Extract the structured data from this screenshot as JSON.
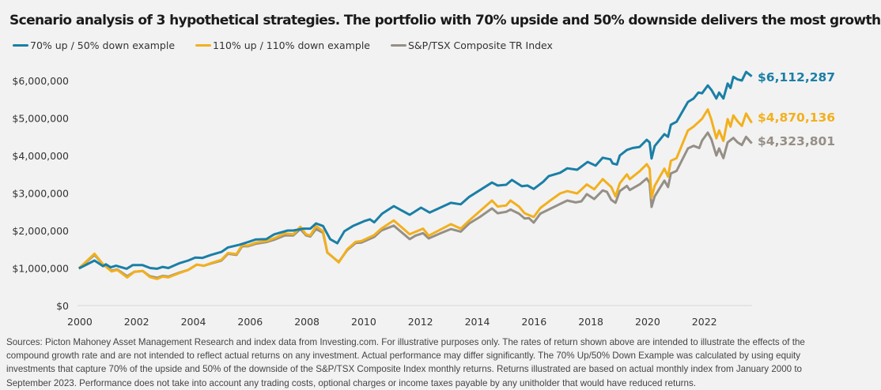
{
  "chart_data": {
    "type": "line",
    "title": "Scenario analysis of 3 hypothetical strategies. The portfolio with 70% upside and 50% downside delivers the most growth",
    "xlabel": "",
    "ylabel": "",
    "xlim": [
      2000,
      2023.75
    ],
    "ylim": [
      0,
      6000000
    ],
    "x_ticks": [
      "2000",
      "2002",
      "2004",
      "2006",
      "2008",
      "2010",
      "2012",
      "2014",
      "2016",
      "2018",
      "2020",
      "2022"
    ],
    "y_ticks": [
      "$0",
      "$1,000,000",
      "$2,000,000",
      "$3,000,000",
      "$4,000,000",
      "$5,000,000",
      "$6,000,000"
    ],
    "grid": false,
    "legend_position": "top-left",
    "series": [
      {
        "name": "70% up / 50% down example",
        "color": "#1a7fa6",
        "end_label": "$6,112,287",
        "points": [
          [
            2000.05,
            0.99
          ],
          [
            2000.6,
            1.2
          ],
          [
            2000.9,
            1.05
          ],
          [
            2001.0,
            1.1
          ],
          [
            2001.17,
            1.02
          ],
          [
            2001.36,
            1.06
          ],
          [
            2001.73,
            0.98
          ],
          [
            2001.95,
            1.08
          ],
          [
            2002.28,
            1.08
          ],
          [
            2002.56,
            1.0
          ],
          [
            2002.8,
            0.98
          ],
          [
            2003.0,
            1.03
          ],
          [
            2003.2,
            1.0
          ],
          [
            2003.6,
            1.13
          ],
          [
            2003.9,
            1.2
          ],
          [
            2004.15,
            1.28
          ],
          [
            2004.4,
            1.27
          ],
          [
            2004.7,
            1.35
          ],
          [
            2005.07,
            1.43
          ],
          [
            2005.3,
            1.55
          ],
          [
            2005.7,
            1.62
          ],
          [
            2006.0,
            1.69
          ],
          [
            2006.27,
            1.76
          ],
          [
            2006.65,
            1.77
          ],
          [
            2006.93,
            1.9
          ],
          [
            2007.4,
            2.0
          ],
          [
            2007.6,
            2.0
          ],
          [
            2007.95,
            2.05
          ],
          [
            2008.2,
            2.05
          ],
          [
            2008.4,
            2.19
          ],
          [
            2008.65,
            2.12
          ],
          [
            2008.9,
            1.77
          ],
          [
            2009.15,
            1.66
          ],
          [
            2009.4,
            1.98
          ],
          [
            2009.7,
            2.12
          ],
          [
            2010.1,
            2.25
          ],
          [
            2010.3,
            2.3
          ],
          [
            2010.45,
            2.22
          ],
          [
            2010.73,
            2.45
          ],
          [
            2011.14,
            2.65
          ],
          [
            2011.7,
            2.42
          ],
          [
            2012.1,
            2.61
          ],
          [
            2012.4,
            2.48
          ],
          [
            2013.15,
            2.74
          ],
          [
            2013.5,
            2.7
          ],
          [
            2013.8,
            2.9
          ],
          [
            2014.6,
            3.28
          ],
          [
            2014.8,
            3.2
          ],
          [
            2015.1,
            3.22
          ],
          [
            2015.3,
            3.35
          ],
          [
            2015.65,
            3.18
          ],
          [
            2015.85,
            3.2
          ],
          [
            2016.07,
            3.11
          ],
          [
            2016.4,
            3.3
          ],
          [
            2016.6,
            3.45
          ],
          [
            2017.0,
            3.54
          ],
          [
            2017.25,
            3.66
          ],
          [
            2017.6,
            3.62
          ],
          [
            2017.97,
            3.83
          ],
          [
            2018.25,
            3.73
          ],
          [
            2018.5,
            3.94
          ],
          [
            2018.77,
            3.9
          ],
          [
            2018.85,
            3.79
          ],
          [
            2019.0,
            3.76
          ],
          [
            2019.1,
            4.0
          ],
          [
            2019.35,
            4.15
          ],
          [
            2019.55,
            4.2
          ],
          [
            2019.8,
            4.23
          ],
          [
            2020.05,
            4.42
          ],
          [
            2020.15,
            4.35
          ],
          [
            2020.22,
            3.92
          ],
          [
            2020.33,
            4.25
          ],
          [
            2020.67,
            4.57
          ],
          [
            2020.8,
            4.5
          ],
          [
            2020.9,
            4.82
          ],
          [
            2021.1,
            4.9
          ],
          [
            2021.5,
            5.43
          ],
          [
            2021.7,
            5.52
          ],
          [
            2021.87,
            5.68
          ],
          [
            2022.0,
            5.66
          ],
          [
            2022.2,
            5.87
          ],
          [
            2022.33,
            5.75
          ],
          [
            2022.5,
            5.52
          ],
          [
            2022.6,
            5.68
          ],
          [
            2022.75,
            5.52
          ],
          [
            2022.9,
            5.92
          ],
          [
            2023.0,
            5.8
          ],
          [
            2023.1,
            6.1
          ],
          [
            2023.25,
            6.03
          ],
          [
            2023.4,
            6.0
          ],
          [
            2023.55,
            6.23
          ],
          [
            2023.75,
            6.112287
          ]
        ]
      },
      {
        "name": "110% up / 110% down example",
        "color": "#f2b01e",
        "end_label": "$4,870,136",
        "points": [
          [
            2000.05,
            0.99
          ],
          [
            2000.6,
            1.38
          ],
          [
            2000.9,
            1.1
          ],
          [
            2001.2,
            0.91
          ],
          [
            2001.4,
            0.95
          ],
          [
            2001.75,
            0.75
          ],
          [
            2002.0,
            0.9
          ],
          [
            2002.3,
            0.92
          ],
          [
            2002.55,
            0.76
          ],
          [
            2002.8,
            0.71
          ],
          [
            2003.0,
            0.77
          ],
          [
            2003.2,
            0.75
          ],
          [
            2003.6,
            0.87
          ],
          [
            2003.9,
            0.95
          ],
          [
            2004.2,
            1.09
          ],
          [
            2004.45,
            1.06
          ],
          [
            2004.7,
            1.13
          ],
          [
            2005.07,
            1.22
          ],
          [
            2005.3,
            1.4
          ],
          [
            2005.6,
            1.37
          ],
          [
            2005.8,
            1.61
          ],
          [
            2006.0,
            1.6
          ],
          [
            2006.3,
            1.68
          ],
          [
            2006.65,
            1.72
          ],
          [
            2006.95,
            1.8
          ],
          [
            2007.3,
            1.92
          ],
          [
            2007.6,
            1.9
          ],
          [
            2007.85,
            2.1
          ],
          [
            2008.05,
            1.9
          ],
          [
            2008.2,
            1.87
          ],
          [
            2008.4,
            2.12
          ],
          [
            2008.65,
            1.98
          ],
          [
            2008.8,
            1.42
          ],
          [
            2009.2,
            1.15
          ],
          [
            2009.5,
            1.5
          ],
          [
            2009.8,
            1.7
          ],
          [
            2010.0,
            1.72
          ],
          [
            2010.45,
            1.88
          ],
          [
            2010.7,
            2.05
          ],
          [
            2011.14,
            2.27
          ],
          [
            2011.7,
            1.9
          ],
          [
            2012.17,
            2.05
          ],
          [
            2012.37,
            1.86
          ],
          [
            2013.15,
            2.17
          ],
          [
            2013.5,
            2.05
          ],
          [
            2013.8,
            2.27
          ],
          [
            2014.6,
            2.8
          ],
          [
            2014.8,
            2.64
          ],
          [
            2015.1,
            2.67
          ],
          [
            2015.25,
            2.8
          ],
          [
            2015.55,
            2.64
          ],
          [
            2015.75,
            2.46
          ],
          [
            2016.07,
            2.36
          ],
          [
            2016.3,
            2.6
          ],
          [
            2016.6,
            2.77
          ],
          [
            2017.0,
            2.99
          ],
          [
            2017.25,
            3.05
          ],
          [
            2017.6,
            2.99
          ],
          [
            2017.94,
            3.23
          ],
          [
            2018.2,
            3.1
          ],
          [
            2018.5,
            3.37
          ],
          [
            2018.8,
            3.16
          ],
          [
            2018.95,
            2.91
          ],
          [
            2019.1,
            3.26
          ],
          [
            2019.35,
            3.5
          ],
          [
            2019.45,
            3.37
          ],
          [
            2019.8,
            3.58
          ],
          [
            2020.05,
            3.77
          ],
          [
            2020.15,
            3.65
          ],
          [
            2020.22,
            2.88
          ],
          [
            2020.33,
            3.19
          ],
          [
            2020.67,
            3.65
          ],
          [
            2020.8,
            3.44
          ],
          [
            2020.9,
            3.86
          ],
          [
            2021.1,
            3.93
          ],
          [
            2021.5,
            4.67
          ],
          [
            2021.7,
            4.77
          ],
          [
            2021.9,
            4.91
          ],
          [
            2022.0,
            4.98
          ],
          [
            2022.2,
            5.23
          ],
          [
            2022.33,
            4.95
          ],
          [
            2022.5,
            4.46
          ],
          [
            2022.6,
            4.67
          ],
          [
            2022.75,
            4.39
          ],
          [
            2022.9,
            4.97
          ],
          [
            2023.0,
            4.77
          ],
          [
            2023.1,
            5.07
          ],
          [
            2023.25,
            4.91
          ],
          [
            2023.4,
            4.79
          ],
          [
            2023.55,
            5.12
          ],
          [
            2023.75,
            4.870136
          ]
        ]
      },
      {
        "name": "S&P/TSX Composite TR Index",
        "color": "#958f86",
        "end_label": "$4,323,801",
        "points": [
          [
            2000.05,
            0.99
          ],
          [
            2000.6,
            1.35
          ],
          [
            2000.9,
            1.1
          ],
          [
            2001.2,
            0.93
          ],
          [
            2001.4,
            0.96
          ],
          [
            2001.75,
            0.78
          ],
          [
            2002.0,
            0.9
          ],
          [
            2002.3,
            0.92
          ],
          [
            2002.55,
            0.78
          ],
          [
            2002.8,
            0.74
          ],
          [
            2003.0,
            0.79
          ],
          [
            2003.2,
            0.77
          ],
          [
            2003.6,
            0.88
          ],
          [
            2003.9,
            0.95
          ],
          [
            2004.2,
            1.09
          ],
          [
            2004.45,
            1.06
          ],
          [
            2004.7,
            1.12
          ],
          [
            2005.07,
            1.2
          ],
          [
            2005.3,
            1.38
          ],
          [
            2005.6,
            1.35
          ],
          [
            2005.8,
            1.58
          ],
          [
            2006.0,
            1.58
          ],
          [
            2006.3,
            1.65
          ],
          [
            2006.65,
            1.69
          ],
          [
            2006.95,
            1.76
          ],
          [
            2007.3,
            1.87
          ],
          [
            2007.6,
            1.87
          ],
          [
            2007.85,
            2.04
          ],
          [
            2008.05,
            1.87
          ],
          [
            2008.2,
            1.84
          ],
          [
            2008.4,
            2.04
          ],
          [
            2008.65,
            1.94
          ],
          [
            2008.8,
            1.41
          ],
          [
            2009.2,
            1.16
          ],
          [
            2009.5,
            1.48
          ],
          [
            2009.8,
            1.67
          ],
          [
            2010.0,
            1.68
          ],
          [
            2010.45,
            1.83
          ],
          [
            2010.7,
            2.0
          ],
          [
            2011.14,
            2.13
          ],
          [
            2011.7,
            1.77
          ],
          [
            2011.9,
            1.86
          ],
          [
            2012.17,
            1.93
          ],
          [
            2012.37,
            1.79
          ],
          [
            2012.8,
            1.93
          ],
          [
            2013.15,
            2.04
          ],
          [
            2013.5,
            1.97
          ],
          [
            2013.8,
            2.19
          ],
          [
            2014.17,
            2.36
          ],
          [
            2014.6,
            2.59
          ],
          [
            2014.8,
            2.46
          ],
          [
            2015.1,
            2.5
          ],
          [
            2015.25,
            2.56
          ],
          [
            2015.55,
            2.45
          ],
          [
            2015.75,
            2.32
          ],
          [
            2015.9,
            2.33
          ],
          [
            2016.07,
            2.21
          ],
          [
            2016.3,
            2.45
          ],
          [
            2016.6,
            2.56
          ],
          [
            2017.0,
            2.71
          ],
          [
            2017.25,
            2.8
          ],
          [
            2017.55,
            2.75
          ],
          [
            2017.75,
            2.78
          ],
          [
            2017.94,
            2.97
          ],
          [
            2018.2,
            2.84
          ],
          [
            2018.5,
            3.07
          ],
          [
            2018.65,
            3.03
          ],
          [
            2018.8,
            2.82
          ],
          [
            2018.95,
            2.74
          ],
          [
            2019.1,
            3.05
          ],
          [
            2019.35,
            3.19
          ],
          [
            2019.45,
            3.08
          ],
          [
            2019.8,
            3.23
          ],
          [
            2020.05,
            3.39
          ],
          [
            2020.15,
            3.27
          ],
          [
            2020.22,
            2.63
          ],
          [
            2020.33,
            2.91
          ],
          [
            2020.67,
            3.33
          ],
          [
            2020.8,
            3.16
          ],
          [
            2020.9,
            3.52
          ],
          [
            2021.1,
            3.59
          ],
          [
            2021.5,
            4.19
          ],
          [
            2021.7,
            4.26
          ],
          [
            2021.9,
            4.2
          ],
          [
            2022.0,
            4.4
          ],
          [
            2022.2,
            4.61
          ],
          [
            2022.33,
            4.43
          ],
          [
            2022.5,
            4.0
          ],
          [
            2022.6,
            4.19
          ],
          [
            2022.75,
            3.93
          ],
          [
            2022.9,
            4.35
          ],
          [
            2023.1,
            4.47
          ],
          [
            2023.25,
            4.35
          ],
          [
            2023.4,
            4.28
          ],
          [
            2023.55,
            4.5
          ],
          [
            2023.75,
            4.323801
          ]
        ]
      }
    ],
    "value_unit_note": "point values in millions of dollars"
  },
  "footnote": "Sources: Picton Mahoney Asset Management Research and index data from Investing.com. For illustrative purposes only. The rates of return shown above are intended to illustrate the effects of the compound growth rate and are not intended to reflect actual returns on any investment. Actual performance may differ significantly. The 70% Up/50% Down Example was calculated by using equity investments that capture 70% of the upside and 50% of the downside of the S&P/TSX Composite Index monthly returns. Returns illustrated are based on actual monthly index from January 2000 to September 2023. Performance does not take into account any trading costs, optional charges or income taxes payable by any unitholder that would have reduced returns."
}
